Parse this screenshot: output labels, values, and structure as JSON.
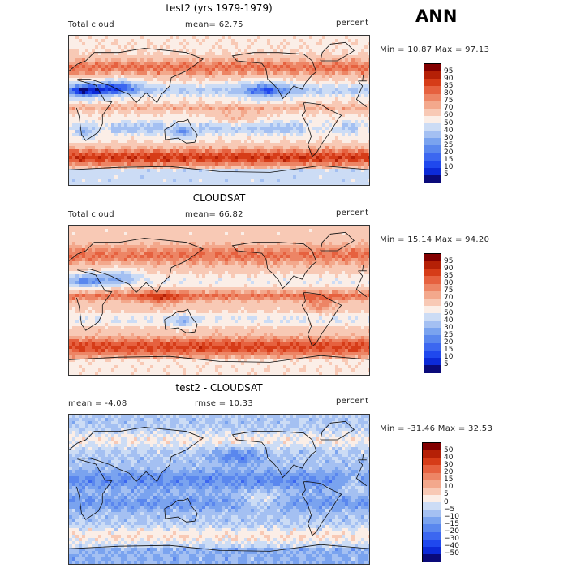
{
  "season": "ANN",
  "units_label": "percent",
  "panels": [
    {
      "title": "test2 (yrs 1979-1979)",
      "left_text": "Total cloud",
      "mid_text": "mean=  62.75",
      "min_max": "Min =  10.87 Max =  97.13",
      "colorbar": {
        "labels": [
          "95",
          "90",
          "85",
          "80",
          "75",
          "70",
          "60",
          "50",
          "40",
          "30",
          "25",
          "20",
          "15",
          "10",
          "5"
        ]
      }
    },
    {
      "title": "CLOUDSAT",
      "left_text": "Total cloud",
      "mid_text": "mean=  66.82",
      "min_max": "Min =  15.14 Max =  94.20",
      "colorbar": {
        "labels": [
          "95",
          "90",
          "85",
          "80",
          "75",
          "70",
          "60",
          "50",
          "40",
          "30",
          "25",
          "20",
          "15",
          "10",
          "5"
        ]
      }
    },
    {
      "title": "test2 - CLOUDSAT",
      "left_text": "mean =  -4.08",
      "mid_text": "rmse =  10.33",
      "min_max": "Min = -31.46 Max =  32.53",
      "colorbar": {
        "labels": [
          "50",
          "40",
          "30",
          "20",
          "15",
          "10",
          "5",
          "0",
          "−5",
          "−10",
          "−15",
          "−20",
          "−30",
          "−40",
          "−50"
        ]
      }
    }
  ],
  "chart_data": [
    {
      "type": "heatmap",
      "title": "test2 (yrs 1979-1979)",
      "field": "Total cloud",
      "units": "percent",
      "mean": 62.75,
      "min": 10.87,
      "max": 97.13,
      "contour_levels": [
        5,
        10,
        15,
        20,
        25,
        30,
        40,
        50,
        60,
        70,
        75,
        80,
        85,
        90,
        95
      ],
      "colors": [
        "#0a0a7a",
        "#0c2ad8",
        "#1f48ee",
        "#3c67f0",
        "#5a87ee",
        "#7aa3ef",
        "#a4c0f2",
        "#ccdcf5",
        "#fbeee7",
        "#f8c9b5",
        "#f3a88c",
        "#ed8565",
        "#e6613f",
        "#d63c18",
        "#b52006",
        "#820000"
      ]
    },
    {
      "type": "heatmap",
      "title": "CLOUDSAT",
      "field": "Total cloud",
      "units": "percent",
      "mean": 66.82,
      "min": 15.14,
      "max": 94.2,
      "contour_levels": [
        5,
        10,
        15,
        20,
        25,
        30,
        40,
        50,
        60,
        70,
        75,
        80,
        85,
        90,
        95
      ],
      "colors": [
        "#0a0a7a",
        "#0c2ad8",
        "#1f48ee",
        "#3c67f0",
        "#5a87ee",
        "#7aa3ef",
        "#a4c0f2",
        "#ccdcf5",
        "#fbeee7",
        "#f8c9b5",
        "#f3a88c",
        "#ed8565",
        "#e6613f",
        "#d63c18",
        "#b52006",
        "#820000"
      ]
    },
    {
      "type": "heatmap",
      "title": "test2 - CLOUDSAT",
      "units": "percent",
      "mean": -4.08,
      "rmse": 10.33,
      "min": -31.46,
      "max": 32.53,
      "contour_levels": [
        -50,
        -40,
        -30,
        -20,
        -15,
        -10,
        -5,
        0,
        5,
        10,
        15,
        20,
        30,
        40,
        50
      ],
      "colors": [
        "#0a0a7a",
        "#0c2ad8",
        "#1f48ee",
        "#3c67f0",
        "#5a87ee",
        "#7aa3ef",
        "#a4c0f2",
        "#ccdcf5",
        "#fbeee7",
        "#f8c9b5",
        "#f3a88c",
        "#ed8565",
        "#e6613f",
        "#d63c18",
        "#b52006",
        "#820000"
      ]
    }
  ]
}
